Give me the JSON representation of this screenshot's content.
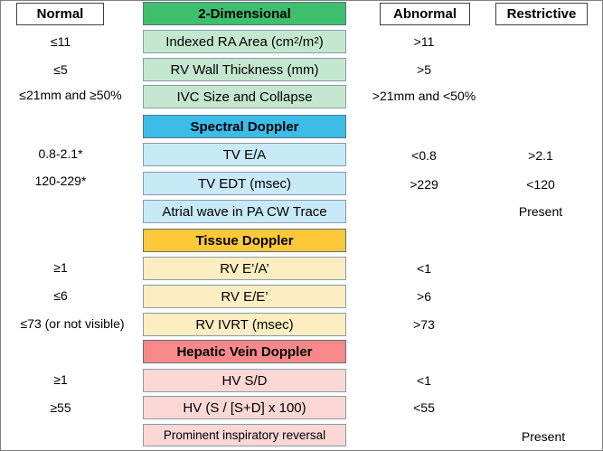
{
  "headers": {
    "normal": "Normal",
    "abnormal": "Abnormal",
    "restrictive": "Restrictive"
  },
  "colors": {
    "two_dim_header": "#3dbf6e",
    "two_dim_row": "#c4e8cf",
    "spectral_header": "#3bbde8",
    "spectral_row": "#c8e9f7",
    "tissue_header": "#fdc93b",
    "tissue_row": "#fdeec2",
    "hepatic_header": "#f8898a",
    "hepatic_row": "#fbd7d6"
  },
  "sections": [
    {
      "title": "2-Dimensional",
      "rows": [
        {
          "param_text": "Indexed RA Area (cm",
          "param_sup1": "2",
          "param_mid": "/m",
          "param_sup2": "2",
          "param_end": ")",
          "normal": "≤11",
          "abnormal": ">11",
          "restrictive": ""
        },
        {
          "param": "RV Wall Thickness (mm)",
          "normal": "≤5",
          "abnormal": ">5",
          "restrictive": ""
        },
        {
          "param": "IVC Size and Collapse",
          "normal": "≤21mm and ≥50%",
          "abnormal": ">21mm and <50%",
          "restrictive": ""
        }
      ]
    },
    {
      "title": "Spectral Doppler",
      "rows": [
        {
          "param": "TV E/A",
          "normal": "0.8-2.1*",
          "abnormal": "<0.8",
          "restrictive": ">2.1"
        },
        {
          "param": "TV EDT (msec)",
          "normal": "120-229*",
          "abnormal": ">229",
          "restrictive": "<120"
        },
        {
          "param": "Atrial wave in PA CW Trace",
          "normal": "",
          "abnormal": "",
          "restrictive": "Present"
        }
      ]
    },
    {
      "title": "Tissue Doppler",
      "rows": [
        {
          "param": "RV E’/A’",
          "normal": "≥1",
          "abnormal": "<1",
          "restrictive": ""
        },
        {
          "param": "RV E/E’",
          "normal": "≤6",
          "abnormal": ">6",
          "restrictive": ""
        },
        {
          "param": "RV IVRT (msec)",
          "normal": "≤73 (or not visible)",
          "abnormal": ">73",
          "restrictive": ""
        }
      ]
    },
    {
      "title": "Hepatic Vein Doppler",
      "rows": [
        {
          "param": "HV S/D",
          "normal": "≥1",
          "abnormal": "<1",
          "restrictive": ""
        },
        {
          "param": "HV (S / [S+D] x 100)",
          "normal": "≥55",
          "abnormal": "<55",
          "restrictive": ""
        },
        {
          "param": "Prominent inspiratory reversal",
          "normal": "",
          "abnormal": "",
          "restrictive": "Present"
        }
      ]
    }
  ]
}
